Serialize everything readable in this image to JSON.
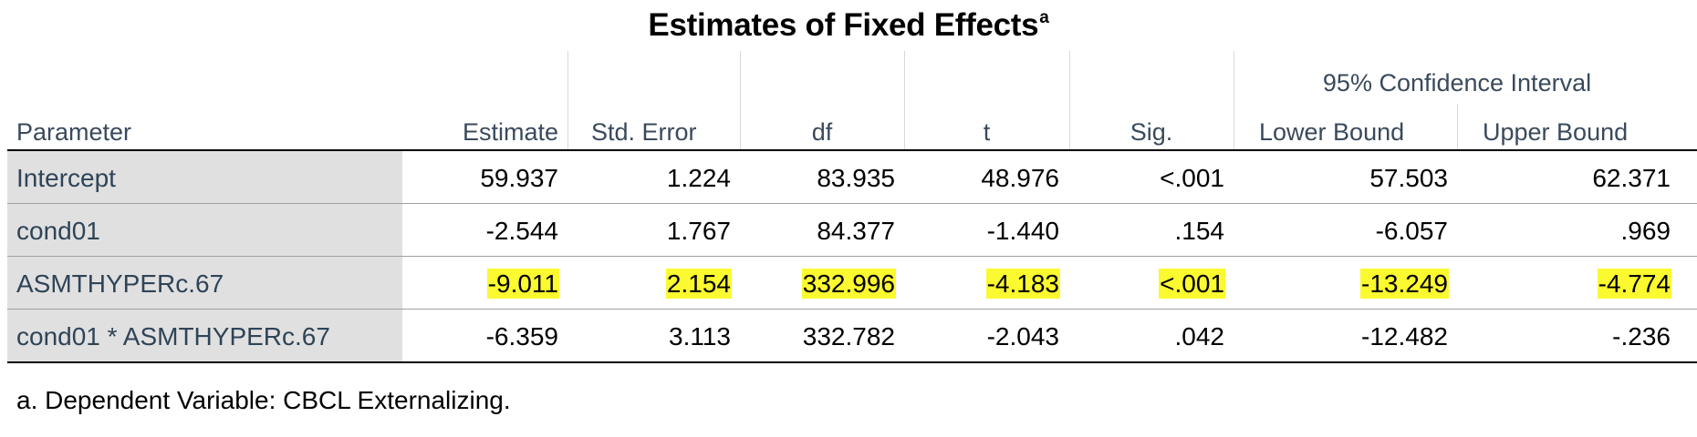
{
  "title": {
    "text": "Estimates of Fixed Effects",
    "superscript": "a"
  },
  "header": {
    "group_label": "95% Confidence Interval",
    "columns": [
      "Parameter",
      "Estimate",
      "Std. Error",
      "df",
      "t",
      "Sig.",
      "Lower Bound",
      "Upper Bound"
    ]
  },
  "rows": [
    {
      "parameter": "Intercept",
      "values": [
        "59.937",
        "1.224",
        "83.935",
        "48.976",
        "<.001",
        "57.503",
        "62.371"
      ],
      "highlighted": false
    },
    {
      "parameter": "cond01",
      "values": [
        "-2.544",
        "1.767",
        "84.377",
        "-1.440",
        ".154",
        "-6.057",
        ".969"
      ],
      "highlighted": false
    },
    {
      "parameter": "ASMTHYPERc.67",
      "values": [
        "-9.011",
        "2.154",
        "332.996",
        "-4.183",
        "<.001",
        "-13.249",
        "-4.774"
      ],
      "highlighted": true
    },
    {
      "parameter": "cond01 * ASMTHYPERc.67",
      "values": [
        "-6.359",
        "3.113",
        "332.782",
        "-2.043",
        ".042",
        "-12.482",
        "-.236"
      ],
      "highlighted": false
    }
  ],
  "footnote": "a. Dependent Variable: CBCL Externalizing.",
  "colors": {
    "highlight": "#fbf92f",
    "label_shading": "#e0e0e0",
    "header_text": "#3a4a5c"
  }
}
